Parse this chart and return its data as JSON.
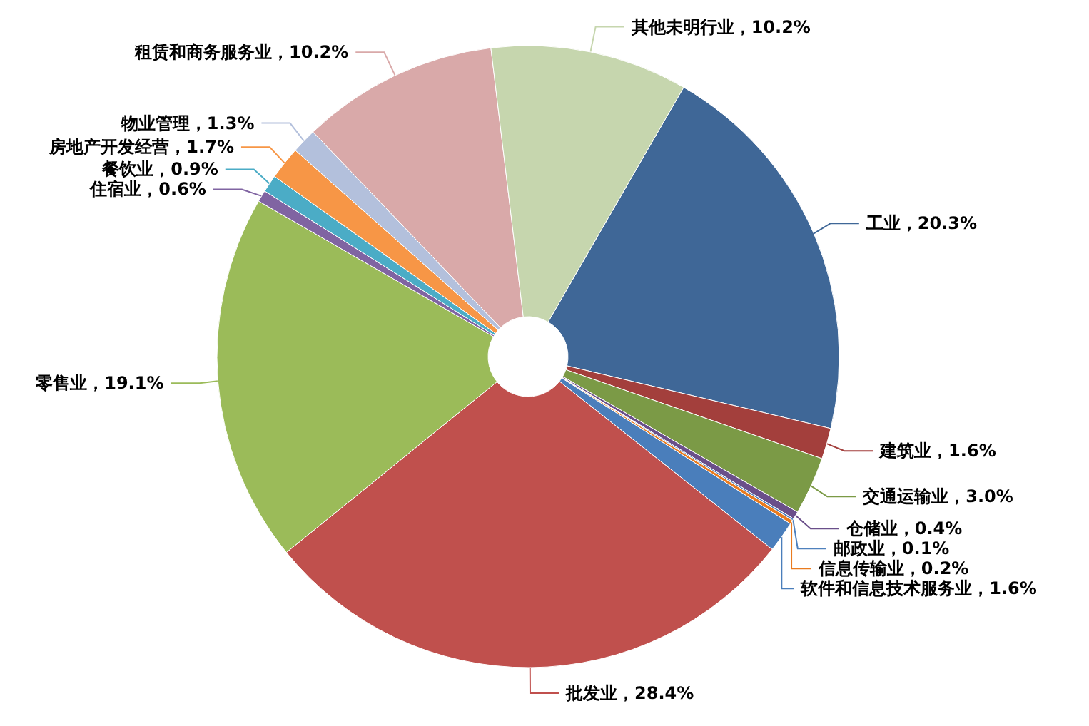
{
  "chart_data": {
    "type": "donut",
    "categories": [
      "工业",
      "建筑业",
      "交通运输业",
      "仓储业",
      "邮政业",
      "信息传输业",
      "软件和信息技术服务业",
      "批发业",
      "零售业",
      "住宿业",
      "餐饮业",
      "房地产开发经营",
      "物业管理",
      "租赁和商务服务业",
      "其他未明行业"
    ],
    "values": [
      20.3,
      1.6,
      3.0,
      0.4,
      0.1,
      0.2,
      1.6,
      28.4,
      19.1,
      0.6,
      0.9,
      1.7,
      1.3,
      10.2,
      10.2
    ],
    "value_labels": [
      "20.3%",
      "1.6%",
      "3.0%",
      "0.4%",
      "0.1%",
      "0.2%",
      "1.6%",
      "28.4%",
      "19.1%",
      "0.6%",
      "0.9%",
      "1.7%",
      "1.3%",
      "10.2%",
      "10.2%"
    ],
    "colors": [
      "#3f6797",
      "#a33f3c",
      "#7b9a46",
      "#6a4f8a",
      "#4f81bd",
      "#e97b1f",
      "#4a7ebb",
      "#c0504d",
      "#9bbb59",
      "#8064a2",
      "#4bacc6",
      "#f79646",
      "#b3c0dc",
      "#d9a9a9",
      "#c6d6ae"
    ],
    "legend": false
  }
}
